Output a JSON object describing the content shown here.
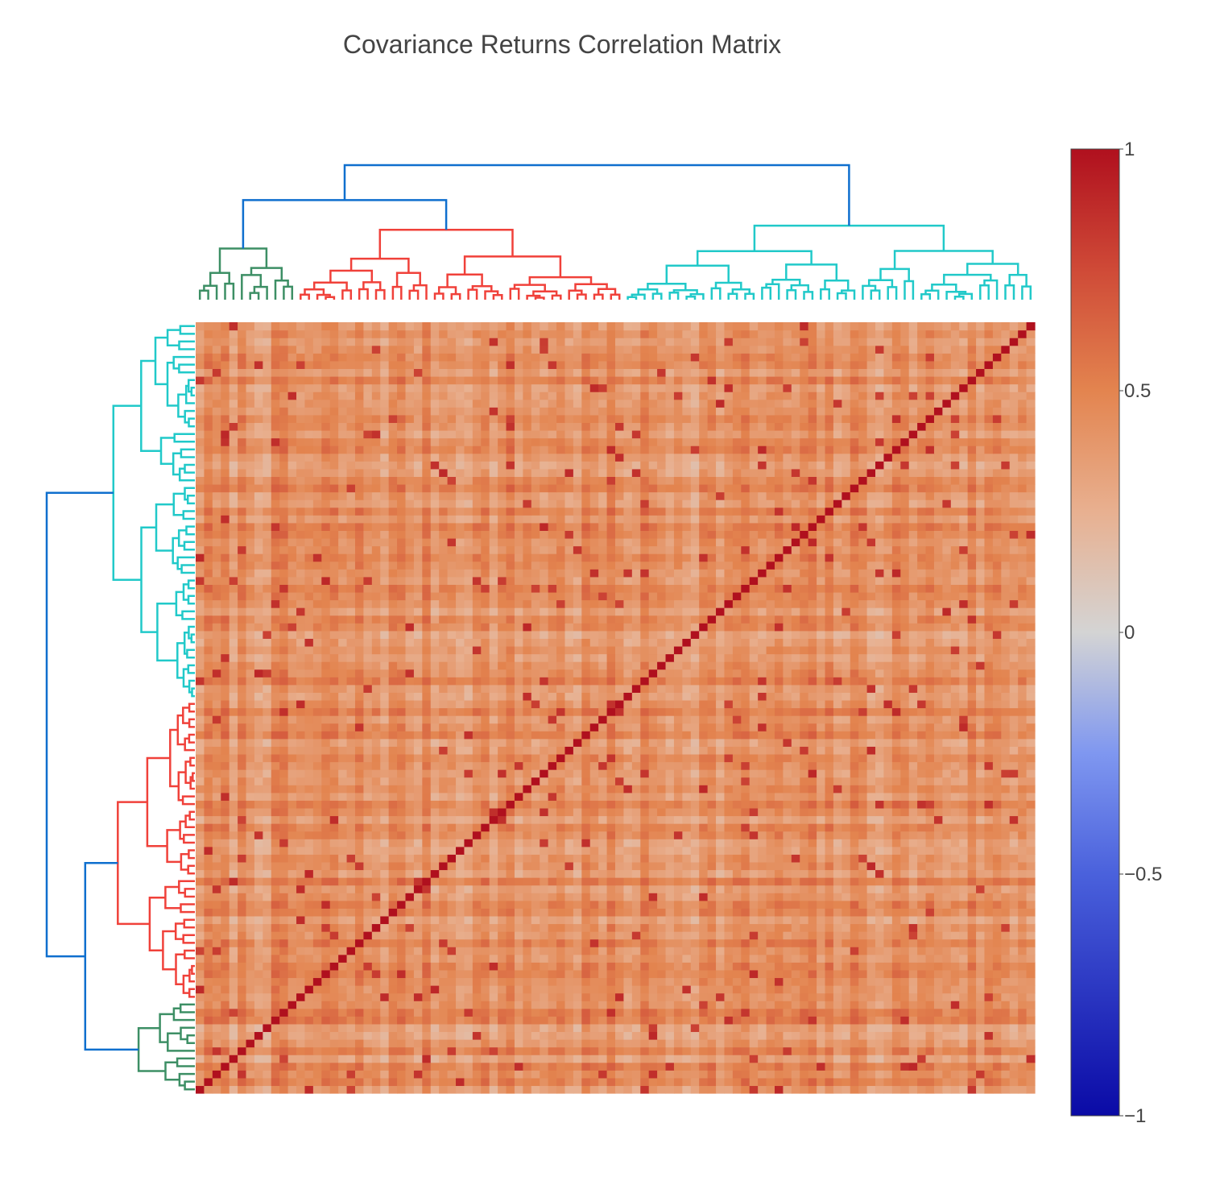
{
  "chart_data": {
    "type": "heatmap",
    "title": "Covariance Returns Correlation Matrix",
    "n_assets": 100,
    "diagonal_value": 1,
    "typical_offdiagonal_range": [
      0.1,
      0.7
    ],
    "colorscale": [
      {
        "value": -1,
        "color": "#0a0aa6"
      },
      {
        "value": -0.5,
        "color": "#4a61dc"
      },
      {
        "value": -0.25,
        "color": "#7f97f0"
      },
      {
        "value": 0,
        "color": "#d4d4d4"
      },
      {
        "value": 0.25,
        "color": "#e8b090"
      },
      {
        "value": 0.5,
        "color": "#e3844f"
      },
      {
        "value": 0.75,
        "color": "#cf4a37"
      },
      {
        "value": 1,
        "color": "#b0101e"
      }
    ],
    "colorbar": {
      "range": [
        -1,
        1
      ],
      "tick_values": [
        1,
        0.5,
        0,
        -0.5,
        -1
      ],
      "tick_labels": [
        "1",
        "0.5",
        "0",
        "−0.5",
        "−1"
      ]
    },
    "dendrogram": {
      "clusters": [
        {
          "color": "#3d8f65",
          "size": 12
        },
        {
          "color": "#f0413a",
          "size": 39
        },
        {
          "color": "#21c9c9",
          "size": 49
        }
      ],
      "link_color": "#0f6fce"
    },
    "grid": false
  }
}
